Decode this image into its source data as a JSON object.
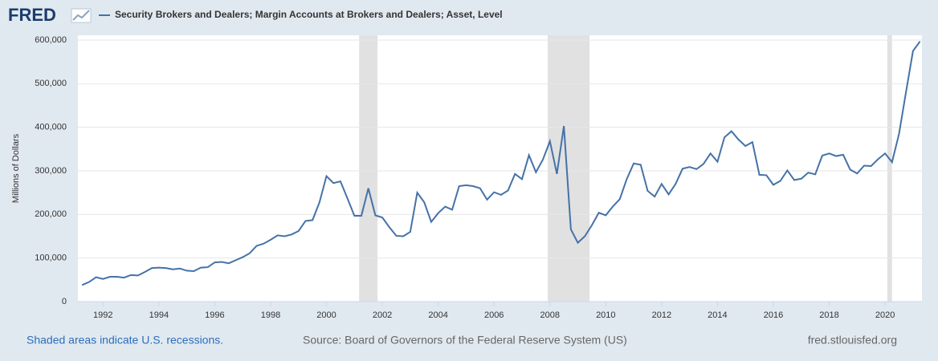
{
  "logo": "FRED",
  "chart_data": {
    "type": "line",
    "ylabel": "Millions of Dollars",
    "series": [
      {
        "name": "Security Brokers and Dealers; Margin Accounts at Brokers and Dealers; Asset, Level",
        "color": "#4572a7",
        "values": [
          38000,
          45000,
          56000,
          52000,
          57000,
          57000,
          55000,
          61000,
          60000,
          68000,
          77000,
          78000,
          77000,
          74000,
          76000,
          71000,
          70000,
          78000,
          79000,
          90000,
          91000,
          88000,
          95000,
          102000,
          111000,
          128000,
          133000,
          142000,
          152000,
          150000,
          154000,
          162000,
          185000,
          187000,
          228000,
          288000,
          272000,
          276000,
          237000,
          197000,
          197000,
          260000,
          198000,
          193000,
          171000,
          151000,
          150000,
          160000,
          250000,
          228000,
          183000,
          203000,
          218000,
          211000,
          265000,
          267000,
          265000,
          260000,
          234000,
          251000,
          245000,
          255000,
          293000,
          281000,
          336000,
          297000,
          326000,
          368000,
          293000,
          403000,
          166000,
          135000,
          150000,
          175000,
          204000,
          198000,
          218000,
          235000,
          281000,
          317000,
          314000,
          254000,
          241000,
          270000,
          246000,
          270000,
          305000,
          309000,
          304000,
          316000,
          340000,
          321000,
          377000,
          391000,
          372000,
          357000,
          366000,
          291000,
          290000,
          268000,
          277000,
          301000,
          279000,
          282000,
          296000,
          292000,
          335000,
          340000,
          334000,
          337000,
          303000,
          294000,
          312000,
          311000,
          327000,
          340000,
          320000,
          385000,
          481000,
          575000,
          597000
        ]
      }
    ],
    "x": [
      1991.25,
      1991.5,
      1991.75,
      1992,
      1992.25,
      1992.5,
      1992.75,
      1993,
      1993.25,
      1993.5,
      1993.75,
      1994,
      1994.25,
      1994.5,
      1994.75,
      1995,
      1995.25,
      1995.5,
      1995.75,
      1996,
      1996.25,
      1996.5,
      1996.75,
      1997,
      1997.25,
      1997.5,
      1997.75,
      1998,
      1998.25,
      1998.5,
      1998.75,
      1999,
      1999.25,
      1999.5,
      1999.75,
      2000,
      2000.25,
      2000.5,
      2000.75,
      2001,
      2001.25,
      2001.5,
      2001.75,
      2002,
      2002.25,
      2002.5,
      2002.75,
      2003,
      2003.25,
      2003.5,
      2003.75,
      2004,
      2004.25,
      2004.5,
      2004.75,
      2005,
      2005.25,
      2005.5,
      2005.75,
      2006,
      2006.25,
      2006.5,
      2006.75,
      2007,
      2007.25,
      2007.5,
      2007.75,
      2008,
      2008.25,
      2008.5,
      2008.75,
      2009,
      2009.25,
      2009.5,
      2009.75,
      2010,
      2010.25,
      2010.5,
      2010.75,
      2011,
      2011.25,
      2011.5,
      2011.75,
      2012,
      2012.25,
      2012.5,
      2012.75,
      2013,
      2013.25,
      2013.5,
      2013.75,
      2014,
      2014.25,
      2014.5,
      2014.75,
      2015,
      2015.25,
      2015.5,
      2015.75,
      2016,
      2016.25,
      2016.5,
      2016.75,
      2017,
      2017.25,
      2017.5,
      2017.75,
      2018,
      2018.25,
      2018.5,
      2018.75,
      2019,
      2019.25,
      2019.5,
      2019.75,
      2020,
      2020.25,
      2020.5,
      2020.75,
      2021,
      2021.25
    ],
    "xlim": [
      1991.1,
      2021.32
    ],
    "xticks": [
      1992,
      1994,
      1996,
      1998,
      2000,
      2002,
      2004,
      2006,
      2008,
      2010,
      2012,
      2014,
      2016,
      2018,
      2020
    ],
    "ylim": [
      0,
      600000
    ],
    "yticks": [
      0,
      {
        "value": 100000,
        "label": "100,000"
      },
      {
        "value": 200000,
        "label": "200,000"
      },
      {
        "value": 300000,
        "label": "300,000"
      },
      {
        "value": 400000,
        "label": "400,000"
      },
      {
        "value": 500000,
        "label": "500,000"
      },
      {
        "value": 600000,
        "label": "600,000"
      }
    ],
    "grid": true,
    "recessions": [
      [
        2001.17,
        2001.83
      ],
      [
        2007.92,
        2009.42
      ],
      [
        2020.08,
        2020.25
      ]
    ],
    "recession_color": "#e1e1e1"
  },
  "footer": {
    "note": "Shaded areas indicate U.S. recessions.",
    "source": "Source: Board of Governors of the Federal Reserve System (US)",
    "site": "fred.stlouisfed.org"
  }
}
